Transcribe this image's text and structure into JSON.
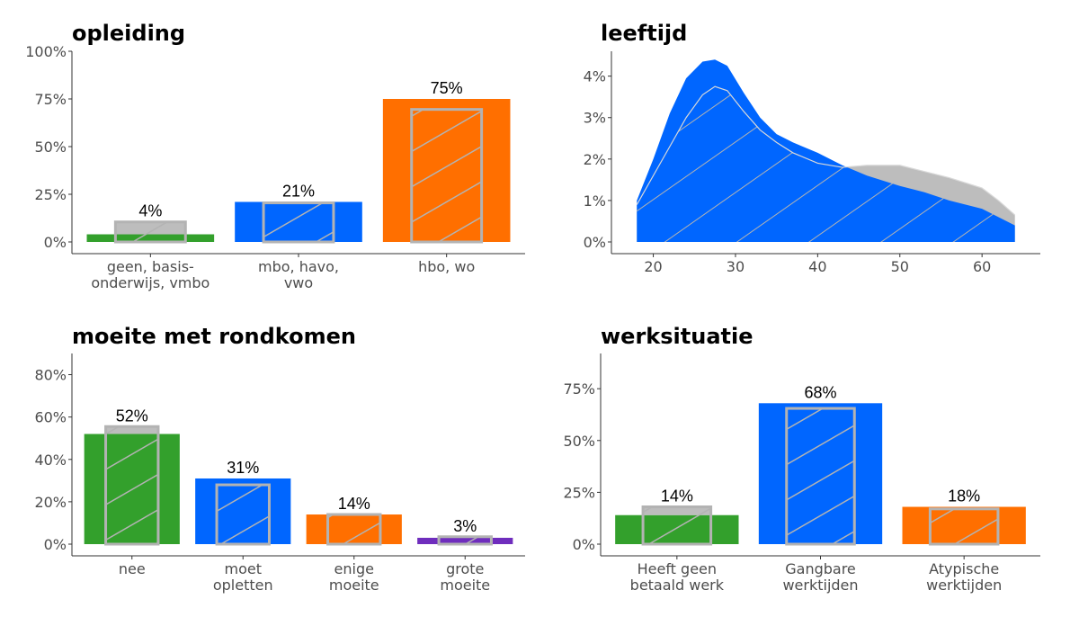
{
  "colors": {
    "green": "#33a02c",
    "blue": "#0066ff",
    "orange": "#ff6f00",
    "purple": "#6f2dbd",
    "reference_gray": "#bdbdbd",
    "reference_outline": "#b3b3b3",
    "hatch": "#b3b3b3",
    "axis": "#333333",
    "tick_text": "#4d4d4d"
  },
  "chart_data": [
    {
      "type": "bar",
      "title": "opleiding",
      "categories": [
        "geen, basis-\nonderwijs, vmbo",
        "mbo, havo,\nvwo",
        "hbo, wo"
      ],
      "values": [
        4,
        21,
        75
      ],
      "reference_values": [
        10.5,
        20.5,
        69.5
      ],
      "value_labels": [
        "4%",
        "21%",
        "75%"
      ],
      "bar_colors": [
        "#33a02c",
        "#0066ff",
        "#ff6f00"
      ],
      "ylim": [
        0,
        100
      ],
      "yticks": [
        0,
        25,
        50,
        75,
        100
      ],
      "ytick_labels": [
        "0%",
        "25%",
        "50%",
        "75%",
        "100%"
      ],
      "grid": false
    },
    {
      "type": "area",
      "title": "leeftijd",
      "x": [
        18,
        20,
        22,
        24,
        26,
        27.5,
        29,
        31,
        33,
        35,
        37,
        40,
        43,
        46,
        50,
        53,
        56,
        60,
        62,
        64
      ],
      "series": [
        {
          "role": "sample",
          "color": "#0066ff",
          "values": [
            1.0,
            2.0,
            3.1,
            3.95,
            4.35,
            4.4,
            4.25,
            3.6,
            3.0,
            2.6,
            2.4,
            2.15,
            1.85,
            1.6,
            1.35,
            1.2,
            1.0,
            0.8,
            0.6,
            0.4
          ]
        },
        {
          "role": "reference",
          "color": "#bdbdbd",
          "values": [
            0.9,
            1.6,
            2.3,
            3.0,
            3.55,
            3.75,
            3.65,
            3.15,
            2.7,
            2.4,
            2.15,
            1.9,
            1.8,
            1.85,
            1.85,
            1.7,
            1.55,
            1.3,
            1.0,
            0.65
          ]
        }
      ],
      "xlim": [
        16,
        66
      ],
      "ylim": [
        0,
        4.6
      ],
      "xticks": [
        20,
        30,
        40,
        50,
        60
      ],
      "xtick_labels": [
        "20",
        "30",
        "40",
        "50",
        "60"
      ],
      "yticks": [
        0,
        1,
        2,
        3,
        4
      ],
      "ytick_labels": [
        "0%",
        "1%",
        "2%",
        "3%",
        "4%"
      ],
      "grid": false
    },
    {
      "type": "bar",
      "title": "moeite met rondkomen",
      "categories": [
        "nee",
        "moet\nopletten",
        "enige\nmoeite",
        "grote\nmoeite"
      ],
      "values": [
        52,
        31,
        14,
        3
      ],
      "reference_values": [
        55.5,
        28,
        14,
        3.5
      ],
      "value_labels": [
        "52%",
        "31%",
        "14%",
        "3%"
      ],
      "bar_colors": [
        "#33a02c",
        "#0066ff",
        "#ff6f00",
        "#6f2dbd"
      ],
      "ylim": [
        0,
        90
      ],
      "yticks": [
        0,
        20,
        40,
        60,
        80
      ],
      "ytick_labels": [
        "0%",
        "20%",
        "40%",
        "60%",
        "80%"
      ],
      "grid": false
    },
    {
      "type": "bar",
      "title": "werksituatie",
      "categories": [
        "Heeft geen\nbetaald werk",
        "Gangbare\nwerktijden",
        "Atypische\nwerktijden"
      ],
      "values": [
        14,
        68,
        18
      ],
      "reference_values": [
        18,
        65.5,
        17
      ],
      "value_labels": [
        "14%",
        "68%",
        "18%"
      ],
      "bar_colors": [
        "#33a02c",
        "#0066ff",
        "#ff6f00"
      ],
      "ylim": [
        0,
        92
      ],
      "yticks": [
        0,
        25,
        50,
        75
      ],
      "ytick_labels": [
        "0%",
        "25%",
        "50%",
        "75%"
      ],
      "grid": false
    }
  ]
}
